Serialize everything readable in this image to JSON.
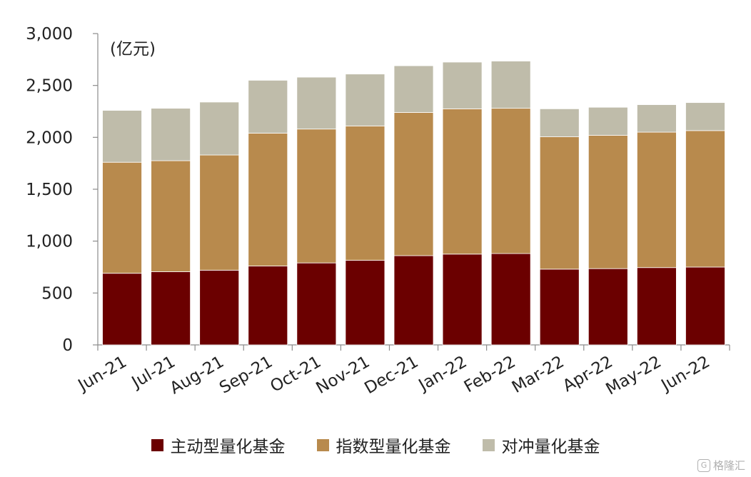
{
  "chart_data": {
    "type": "bar",
    "stacked": true,
    "unit_label": "(亿元)",
    "categories": [
      "Jun-21",
      "Jul-21",
      "Aug-21",
      "Sep-21",
      "Oct-21",
      "Nov-21",
      "Dec-21",
      "Jan-22",
      "Feb-22",
      "Mar-22",
      "Apr-22",
      "May-22",
      "Jun-22"
    ],
    "series": [
      {
        "name": "主动型量化基金",
        "color": "#6b0000",
        "values": [
          690,
          705,
          720,
          760,
          790,
          815,
          860,
          875,
          880,
          730,
          735,
          745,
          750
        ]
      },
      {
        "name": "指数型量化基金",
        "color": "#b88a4d",
        "values": [
          1070,
          1070,
          1110,
          1280,
          1290,
          1295,
          1380,
          1400,
          1400,
          1275,
          1285,
          1305,
          1315
        ]
      },
      {
        "name": "对冲量化基金",
        "color": "#bfbcaa",
        "values": [
          500,
          505,
          510,
          510,
          500,
          500,
          450,
          450,
          455,
          270,
          270,
          265,
          270
        ]
      }
    ],
    "ylim": [
      0,
      3000
    ],
    "yticks": [
      0,
      500,
      1000,
      1500,
      2000,
      2500,
      3000
    ],
    "ytick_labels": [
      "0",
      "500",
      "1,000",
      "1,500",
      "2,000",
      "2,500",
      "3,000"
    ],
    "grid": false,
    "legend_position": "bottom"
  },
  "watermark": {
    "text": "格隆汇",
    "icon": "g-logo-icon"
  }
}
